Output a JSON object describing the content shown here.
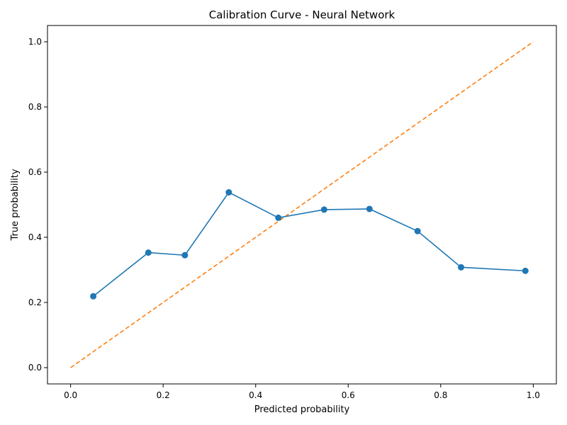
{
  "chart_data": {
    "type": "line",
    "title": "Calibration Curve - Neural Network",
    "xlabel": "Predicted probability",
    "ylabel": "True probability",
    "xlim": [
      -0.05,
      1.05
    ],
    "ylim": [
      -0.05,
      1.05
    ],
    "xticks": [
      0.0,
      0.2,
      0.4,
      0.6,
      0.8,
      1.0
    ],
    "yticks": [
      0.0,
      0.2,
      0.4,
      0.6,
      0.8,
      1.0
    ],
    "xtick_labels": [
      "0.0",
      "0.2",
      "0.4",
      "0.6",
      "0.8",
      "1.0"
    ],
    "ytick_labels": [
      "0.0",
      "0.2",
      "0.4",
      "0.6",
      "0.8",
      "1.0"
    ],
    "grid": false,
    "legend": "none",
    "series": [
      {
        "style": "line-with-markers",
        "color": "#1f77b4",
        "x": [
          0.049,
          0.168,
          0.247,
          0.342,
          0.449,
          0.548,
          0.646,
          0.75,
          0.844,
          0.983
        ],
        "y": [
          0.219,
          0.353,
          0.345,
          0.538,
          0.46,
          0.485,
          0.487,
          0.419,
          0.308,
          0.297
        ]
      },
      {
        "style": "dashed-line",
        "color": "#ff7f0e",
        "x": [
          0.0,
          1.0
        ],
        "y": [
          0.0,
          1.0
        ]
      }
    ]
  }
}
